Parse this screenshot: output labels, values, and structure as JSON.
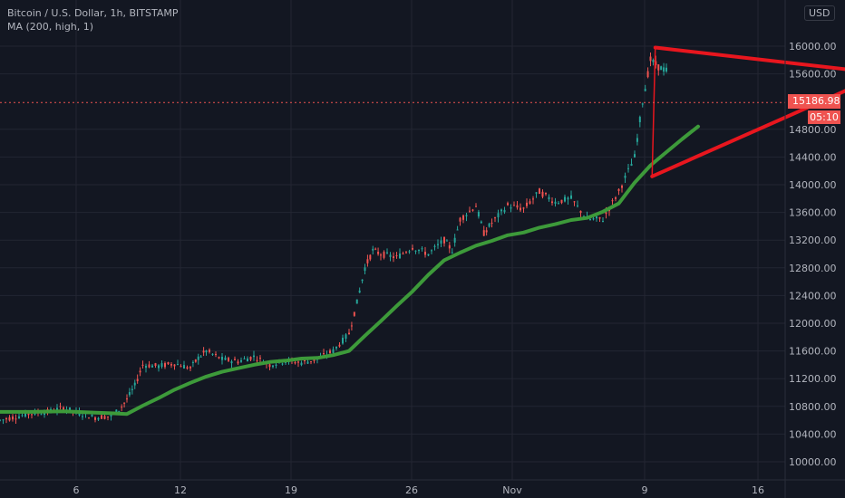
{
  "header": {
    "symbol_line": "Bitcoin / U.S. Dollar, 1h, BITSTAMP",
    "indicator_line": "MA (200, high, 1)"
  },
  "currency_button": "USD",
  "last_price": "15186.98",
  "countdown": "05:10",
  "colors": {
    "background": "#131722",
    "grid": "#232632",
    "candle_up": "#26a69a",
    "candle_down": "#ef5350",
    "ma_line": "#3d9a3a",
    "triangle": "#e8161e",
    "price_line": "#ef5350"
  },
  "chart_data": {
    "type": "line",
    "ylim": [
      9850,
      16420
    ],
    "yticks": [
      "10000.00",
      "10400.00",
      "10800.00",
      "11200.00",
      "11600.00",
      "12000.00",
      "12400.00",
      "12800.00",
      "13200.00",
      "13600.00",
      "14000.00",
      "14400.00",
      "14800.00",
      "15600.00",
      "16000.00"
    ],
    "xticks": [
      "6",
      "12",
      "19",
      "26",
      "Nov",
      "9",
      "16"
    ],
    "series": [
      {
        "values": [
          [
            0,
            10720
          ],
          [
            2,
            10720
          ],
          [
            4,
            10730
          ],
          [
            6,
            10710
          ],
          [
            7,
            10700
          ],
          [
            8,
            10690
          ],
          [
            9,
            10810
          ],
          [
            10,
            10920
          ],
          [
            11,
            11040
          ],
          [
            12,
            11140
          ],
          [
            13,
            11230
          ],
          [
            14,
            11300
          ],
          [
            15,
            11350
          ],
          [
            16,
            11400
          ],
          [
            17,
            11440
          ],
          [
            18,
            11460
          ],
          [
            19,
            11490
          ],
          [
            20,
            11500
          ],
          [
            21,
            11540
          ],
          [
            22,
            11600
          ],
          [
            23,
            11820
          ],
          [
            24,
            12030
          ],
          [
            25,
            12250
          ],
          [
            26,
            12460
          ],
          [
            27,
            12700
          ],
          [
            28,
            12910
          ],
          [
            29,
            13020
          ],
          [
            30,
            13120
          ],
          [
            31,
            13190
          ],
          [
            32,
            13270
          ],
          [
            33,
            13310
          ],
          [
            34,
            13380
          ],
          [
            35,
            13430
          ],
          [
            36,
            13490
          ],
          [
            37,
            13520
          ],
          [
            38,
            13610
          ],
          [
            39,
            13730
          ],
          [
            40,
            14030
          ],
          [
            41,
            14280
          ],
          [
            42,
            14470
          ],
          [
            43,
            14660
          ],
          [
            44,
            14840
          ]
        ]
      }
    ],
    "price_points": [
      [
        0,
        10600
      ],
      [
        1,
        10650
      ],
      [
        2,
        10700
      ],
      [
        3,
        10720
      ],
      [
        4,
        10780
      ],
      [
        5,
        10700
      ],
      [
        6,
        10640
      ],
      [
        7,
        10660
      ],
      [
        7.5,
        10750
      ],
      [
        8,
        10900
      ],
      [
        8.5,
        11100
      ],
      [
        9,
        11400
      ],
      [
        10,
        11380
      ],
      [
        11,
        11420
      ],
      [
        12,
        11350
      ],
      [
        12.5,
        11500
      ],
      [
        13,
        11600
      ],
      [
        14,
        11480
      ],
      [
        15,
        11450
      ],
      [
        16,
        11520
      ],
      [
        17,
        11400
      ],
      [
        18,
        11460
      ],
      [
        19,
        11430
      ],
      [
        20,
        11480
      ],
      [
        21,
        11600
      ],
      [
        22,
        11850
      ],
      [
        22.5,
        12300
      ],
      [
        23,
        12800
      ],
      [
        23.5,
        13050
      ],
      [
        24,
        13000
      ],
      [
        25,
        12950
      ],
      [
        26,
        13100
      ],
      [
        27,
        13000
      ],
      [
        28,
        13200
      ],
      [
        28.5,
        13050
      ],
      [
        29,
        13500
      ],
      [
        30,
        13700
      ],
      [
        30.5,
        13300
      ],
      [
        31,
        13450
      ],
      [
        32,
        13700
      ],
      [
        33,
        13650
      ],
      [
        34,
        13900
      ],
      [
        35,
        13750
      ],
      [
        36,
        13800
      ],
      [
        37,
        13500
      ],
      [
        38,
        13500
      ],
      [
        39,
        13900
      ],
      [
        40,
        14400
      ],
      [
        40.5,
        15200
      ],
      [
        41,
        15800
      ],
      [
        41.5,
        15700
      ],
      [
        42,
        15650
      ],
      [
        42.5,
        15400
      ],
      [
        43,
        15200
      ],
      [
        43.5,
        14800
      ],
      [
        44,
        15300
      ],
      [
        45,
        15600
      ],
      [
        45.5,
        15200
      ],
      [
        46,
        15500
      ],
      [
        46.5,
        15300
      ],
      [
        47,
        15187
      ]
    ],
    "last_value": 15186.98,
    "annotations": {
      "triangle_top": [
        [
          41.3,
          15980
        ],
        [
          55.1,
          15620
        ]
      ],
      "triangle_bottom": [
        [
          41.1,
          14120
        ],
        [
          55.1,
          15540
        ]
      ],
      "triangle_left": [
        [
          41.3,
          15980
        ],
        [
          41.1,
          14120
        ]
      ]
    }
  }
}
